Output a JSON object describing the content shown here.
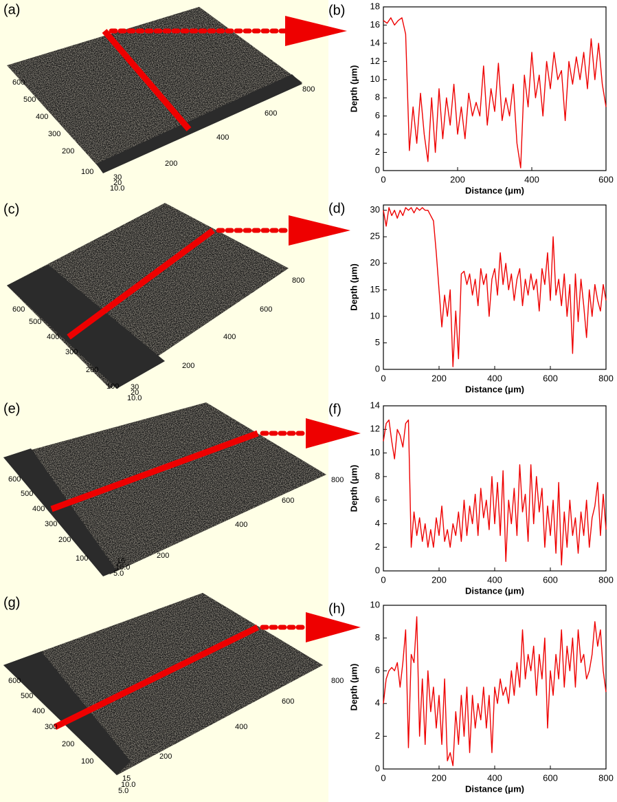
{
  "chart_data": [
    {
      "type": "line",
      "panel_label": "(b)",
      "x_label": "Distance (μm)",
      "y_label": "Depth (μm)",
      "color": "#ee0000",
      "xlim": [
        0,
        600
      ],
      "ylim": [
        0,
        18
      ],
      "xticks": [
        0,
        200,
        400,
        600
      ],
      "yticks": [
        0,
        2,
        4,
        6,
        8,
        10,
        12,
        14,
        16,
        18
      ],
      "x": [
        0,
        10,
        20,
        30,
        40,
        50,
        60,
        70,
        80,
        90,
        100,
        110,
        120,
        130,
        140,
        150,
        160,
        170,
        180,
        190,
        200,
        210,
        220,
        230,
        240,
        250,
        260,
        270,
        280,
        290,
        300,
        310,
        320,
        330,
        340,
        350,
        360,
        370,
        380,
        390,
        400,
        410,
        420,
        430,
        440,
        450,
        460,
        470,
        480,
        490,
        500,
        510,
        520,
        530,
        540,
        550,
        560,
        570,
        580,
        590,
        600
      ],
      "values": [
        16.5,
        16.2,
        16.8,
        16,
        16.5,
        16.8,
        15,
        2.2,
        7,
        3,
        8.5,
        4,
        1,
        8,
        2,
        9,
        3.5,
        8,
        5,
        9.5,
        4,
        7,
        3.5,
        8.5,
        6,
        7.5,
        6,
        11.5,
        5,
        9,
        6.5,
        11.8,
        5.5,
        8,
        6,
        9.5,
        3,
        0.3,
        10.5,
        7,
        13,
        8,
        10.5,
        6,
        12,
        9,
        13,
        10,
        11,
        5.5,
        12,
        9.5,
        12.5,
        10,
        13,
        9,
        14.5,
        10,
        14,
        9.5,
        7
      ]
    },
    {
      "type": "line",
      "panel_label": "(d)",
      "x_label": "Distance (μm)",
      "y_label": "Depth (μm)",
      "color": "#ee0000",
      "xlim": [
        0,
        800
      ],
      "ylim": [
        0,
        31
      ],
      "xticks": [
        0,
        200,
        400,
        600,
        800
      ],
      "yticks": [
        0,
        5,
        10,
        15,
        20,
        25,
        30
      ],
      "x": [
        0,
        10,
        20,
        30,
        40,
        50,
        60,
        70,
        80,
        90,
        100,
        110,
        120,
        130,
        140,
        150,
        160,
        170,
        180,
        190,
        200,
        210,
        220,
        230,
        240,
        250,
        260,
        270,
        280,
        290,
        300,
        310,
        320,
        330,
        340,
        350,
        360,
        370,
        380,
        390,
        400,
        410,
        420,
        430,
        440,
        450,
        460,
        470,
        480,
        490,
        500,
        510,
        520,
        530,
        540,
        550,
        560,
        570,
        580,
        590,
        600,
        610,
        620,
        630,
        640,
        650,
        660,
        670,
        680,
        690,
        700,
        710,
        720,
        730,
        740,
        750,
        760,
        770,
        780,
        790,
        800
      ],
      "values": [
        30,
        27,
        30.5,
        29,
        30,
        28.5,
        30,
        29,
        30.5,
        30,
        30.5,
        29.5,
        30.5,
        30,
        30.5,
        30,
        30,
        29,
        28,
        22,
        15,
        8,
        14,
        10,
        15,
        0.5,
        11,
        2,
        18,
        18.5,
        16,
        18,
        14,
        17,
        12,
        19,
        16,
        18,
        10,
        17,
        19,
        14,
        22,
        16,
        20,
        15,
        18,
        13,
        17,
        19,
        12,
        17,
        14,
        18,
        15,
        17,
        11,
        19,
        16,
        22,
        13,
        25,
        14,
        17,
        12,
        18,
        10,
        16,
        3,
        18,
        9,
        17,
        12,
        6,
        15,
        10,
        16,
        13,
        11,
        16,
        13
      ]
    },
    {
      "type": "line",
      "panel_label": "(f)",
      "x_label": "Distance (μm)",
      "y_label": "Depth (μm)",
      "color": "#ee0000",
      "xlim": [
        0,
        800
      ],
      "ylim": [
        0,
        14
      ],
      "xticks": [
        0,
        200,
        400,
        600,
        800
      ],
      "yticks": [
        0,
        2,
        4,
        6,
        8,
        10,
        12,
        14
      ],
      "x": [
        0,
        10,
        20,
        30,
        40,
        50,
        60,
        70,
        80,
        90,
        100,
        110,
        120,
        130,
        140,
        150,
        160,
        170,
        180,
        190,
        200,
        210,
        220,
        230,
        240,
        250,
        260,
        270,
        280,
        290,
        300,
        310,
        320,
        330,
        340,
        350,
        360,
        370,
        380,
        390,
        400,
        410,
        420,
        430,
        440,
        450,
        460,
        470,
        480,
        490,
        500,
        510,
        520,
        530,
        540,
        550,
        560,
        570,
        580,
        590,
        600,
        610,
        620,
        630,
        640,
        650,
        660,
        670,
        680,
        690,
        700,
        710,
        720,
        730,
        740,
        750,
        760,
        770,
        780,
        790,
        800
      ],
      "values": [
        11,
        12.5,
        12.8,
        11,
        9.5,
        12,
        11.5,
        10.5,
        12.5,
        12.8,
        2,
        5,
        3,
        4.5,
        2.5,
        4,
        2,
        3.5,
        2,
        4.5,
        3,
        5.5,
        2.5,
        3.5,
        2,
        4,
        3,
        5,
        2.5,
        6,
        3,
        5.5,
        4,
        6.5,
        3,
        7,
        4.5,
        6,
        3.5,
        8,
        4,
        7.5,
        3,
        8.5,
        0.8,
        6,
        4,
        7,
        3,
        9,
        5,
        6.5,
        2.5,
        9,
        4,
        8,
        5,
        7,
        2,
        5.5,
        3,
        6,
        1.5,
        7.5,
        0.5,
        5,
        2,
        6,
        3,
        4.5,
        1.5,
        5,
        3,
        6,
        2,
        4.5,
        5.5,
        7.5,
        3,
        6.5,
        3.5
      ]
    },
    {
      "type": "line",
      "panel_label": "(h)",
      "x_label": "Distance (μm)",
      "y_label": "Depth (μm)",
      "color": "#ee0000",
      "xlim": [
        0,
        800
      ],
      "ylim": [
        0,
        10
      ],
      "xticks": [
        0,
        200,
        400,
        600,
        800
      ],
      "yticks": [
        0,
        2,
        4,
        6,
        8,
        10
      ],
      "x": [
        0,
        10,
        20,
        30,
        40,
        50,
        60,
        70,
        80,
        90,
        100,
        110,
        120,
        130,
        140,
        150,
        160,
        170,
        180,
        190,
        200,
        210,
        220,
        230,
        240,
        250,
        260,
        270,
        280,
        290,
        300,
        310,
        320,
        330,
        340,
        350,
        360,
        370,
        380,
        390,
        400,
        410,
        420,
        430,
        440,
        450,
        460,
        470,
        480,
        490,
        500,
        510,
        520,
        530,
        540,
        550,
        560,
        570,
        580,
        590,
        600,
        610,
        620,
        630,
        640,
        650,
        660,
        670,
        680,
        690,
        700,
        710,
        720,
        730,
        740,
        750,
        760,
        770,
        780,
        790,
        800
      ],
      "values": [
        4,
        5.5,
        6,
        6.2,
        6,
        6.5,
        5,
        6.5,
        8.5,
        1.3,
        7,
        6.5,
        9.3,
        2,
        5.5,
        1.5,
        6,
        3.5,
        5,
        2.5,
        4.5,
        1.5,
        5.5,
        0.5,
        1,
        0.2,
        3.5,
        1.5,
        4.5,
        2,
        5,
        1,
        4.5,
        2.5,
        4,
        3,
        5,
        2.5,
        4.5,
        1,
        5,
        4,
        5.5,
        4.5,
        5,
        4,
        6,
        4.5,
        6.5,
        5,
        8.5,
        5.5,
        7,
        6,
        7.5,
        4.5,
        7,
        5.5,
        8,
        2.5,
        6,
        4.5,
        7,
        5.5,
        8.5,
        5,
        7.5,
        6,
        8,
        5,
        8.5,
        6.5,
        7,
        5.5,
        6,
        7,
        9,
        7.5,
        8.5,
        6,
        4.7
      ]
    }
  ],
  "surface_panels": [
    {
      "panel_label": "(a)",
      "y_ticks": [
        "600",
        "500",
        "400",
        "300",
        "200",
        "100"
      ],
      "x_ticks": [
        "200",
        "400",
        "600",
        "800"
      ],
      "z_ticks": [
        "30",
        "20",
        "10.0"
      ]
    },
    {
      "panel_label": "(c)",
      "y_ticks": [
        "600",
        "500",
        "400",
        "300",
        "200",
        "100"
      ],
      "x_ticks": [
        "200",
        "400",
        "600",
        "800"
      ],
      "z_ticks": [
        "30",
        "20",
        "10.0"
      ]
    },
    {
      "panel_label": "(e)",
      "y_ticks": [
        "600",
        "500",
        "400",
        "300",
        "200",
        "100"
      ],
      "x_ticks": [
        "200",
        "400",
        "600",
        "800"
      ],
      "z_ticks": [
        "15",
        "10.0",
        "5.0"
      ]
    },
    {
      "panel_label": "(g)",
      "y_ticks": [
        "600",
        "500",
        "400",
        "300",
        "200",
        "100"
      ],
      "x_ticks": [
        "200",
        "400",
        "600",
        "800"
      ],
      "z_ticks": [
        "15",
        "10.0",
        "5.0"
      ]
    }
  ]
}
